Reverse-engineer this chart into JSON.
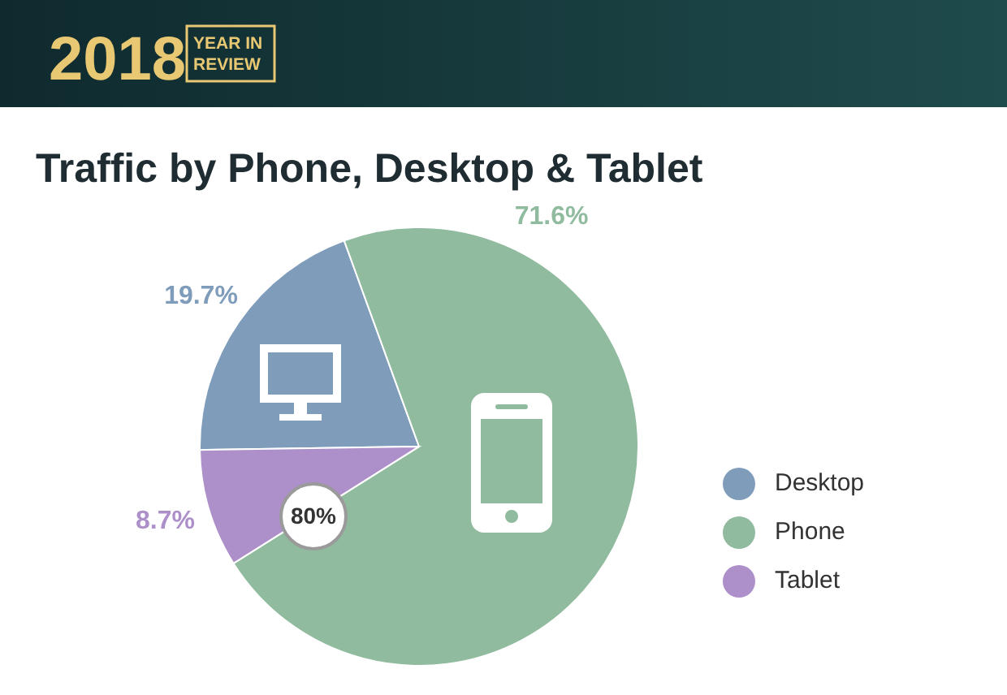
{
  "chart_data": {
    "type": "pie",
    "title": "Traffic by Phone, Desktop & Tablet",
    "annotations": [
      "2018",
      "YEAR IN REVIEW",
      "80%"
    ],
    "categories": [
      "Desktop",
      "Phone",
      "Tablet"
    ],
    "values": [
      19.7,
      71.6,
      8.7
    ],
    "value_labels": [
      "19.7%",
      "71.6%",
      "8.7%"
    ],
    "colors": [
      "#7f9dbb",
      "#90bb9f",
      "#ad8fc9"
    ],
    "legend": "right"
  }
}
